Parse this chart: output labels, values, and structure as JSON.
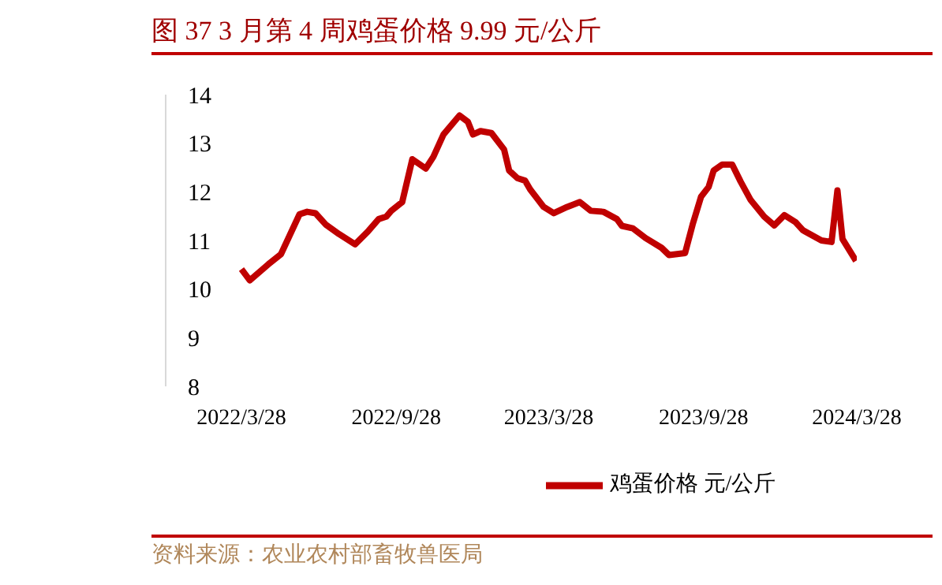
{
  "chart_data": {
    "type": "line",
    "title": "图 37 3 月第 4 周鸡蛋价格 9.99 元/公斤",
    "annotations": [
      "资料来源：农业农村部畜牧兽医局"
    ],
    "x": [
      "2022-03-28",
      "2022-04-07",
      "2022-04-29",
      "2022-05-14",
      "2022-06-05",
      "2022-06-14",
      "2022-06-24",
      "2022-07-06",
      "2022-07-22",
      "2022-08-10",
      "2022-08-25",
      "2022-09-07",
      "2022-09-16",
      "2022-09-22",
      "2022-10-05",
      "2022-10-17",
      "2022-11-02",
      "2022-11-11",
      "2022-11-23",
      "2022-12-12",
      "2022-12-22",
      "2022-12-28",
      "2023-01-06",
      "2023-01-19",
      "2023-02-03",
      "2023-02-09",
      "2023-02-19",
      "2023-02-28",
      "2023-03-06",
      "2023-03-22",
      "2023-04-03",
      "2023-04-19",
      "2023-05-04",
      "2023-05-17",
      "2023-06-01",
      "2023-06-17",
      "2023-06-23",
      "2023-07-06",
      "2023-07-21",
      "2023-08-09",
      "2023-08-18",
      "2023-09-06",
      "2023-09-15",
      "2023-09-25",
      "2023-10-04",
      "2023-10-10",
      "2023-10-20",
      "2023-11-01",
      "2023-11-11",
      "2023-11-23",
      "2023-12-09",
      "2023-12-21",
      "2024-01-02",
      "2024-01-15",
      "2024-01-24",
      "2024-02-15",
      "2024-02-27",
      "2024-03-05",
      "2024-03-11",
      "2024-03-27"
    ],
    "series": [
      {
        "name": "鸡蛋价格 元/公斤",
        "color": "#c00000",
        "values": [
          10.41,
          10.18,
          10.51,
          10.72,
          11.54,
          11.59,
          11.56,
          11.33,
          11.13,
          10.92,
          11.18,
          11.44,
          11.49,
          11.61,
          11.79,
          12.67,
          12.48,
          12.72,
          13.18,
          13.57,
          13.44,
          13.18,
          13.25,
          13.21,
          12.87,
          12.44,
          12.28,
          12.23,
          12.05,
          11.69,
          11.56,
          11.69,
          11.79,
          11.61,
          11.59,
          11.44,
          11.3,
          11.25,
          11.05,
          10.85,
          10.7,
          10.74,
          11.33,
          11.9,
          12.1,
          12.44,
          12.56,
          12.56,
          12.21,
          11.83,
          11.49,
          11.31,
          11.52,
          11.38,
          11.21,
          11.0,
          10.97,
          12.03,
          11.03,
          10.58
        ]
      }
    ],
    "xlim": [
      "2021-12-28",
      "2024-03-28"
    ],
    "xticks": [
      {
        "value": "2022-03-28",
        "label": "2022/3/28"
      },
      {
        "value": "2022-09-28",
        "label": "2022/9/28"
      },
      {
        "value": "2023-03-28",
        "label": "2023/3/28"
      },
      {
        "value": "2023-09-28",
        "label": "2023/9/28"
      },
      {
        "value": "2024-03-28",
        "label": "2024/3/28"
      }
    ],
    "ylim": [
      8,
      14
    ],
    "yticks": [
      8,
      9,
      10,
      11,
      12,
      13,
      14
    ],
    "grid": false,
    "legend": "bottom",
    "marker": "none",
    "line_style": "solid"
  }
}
